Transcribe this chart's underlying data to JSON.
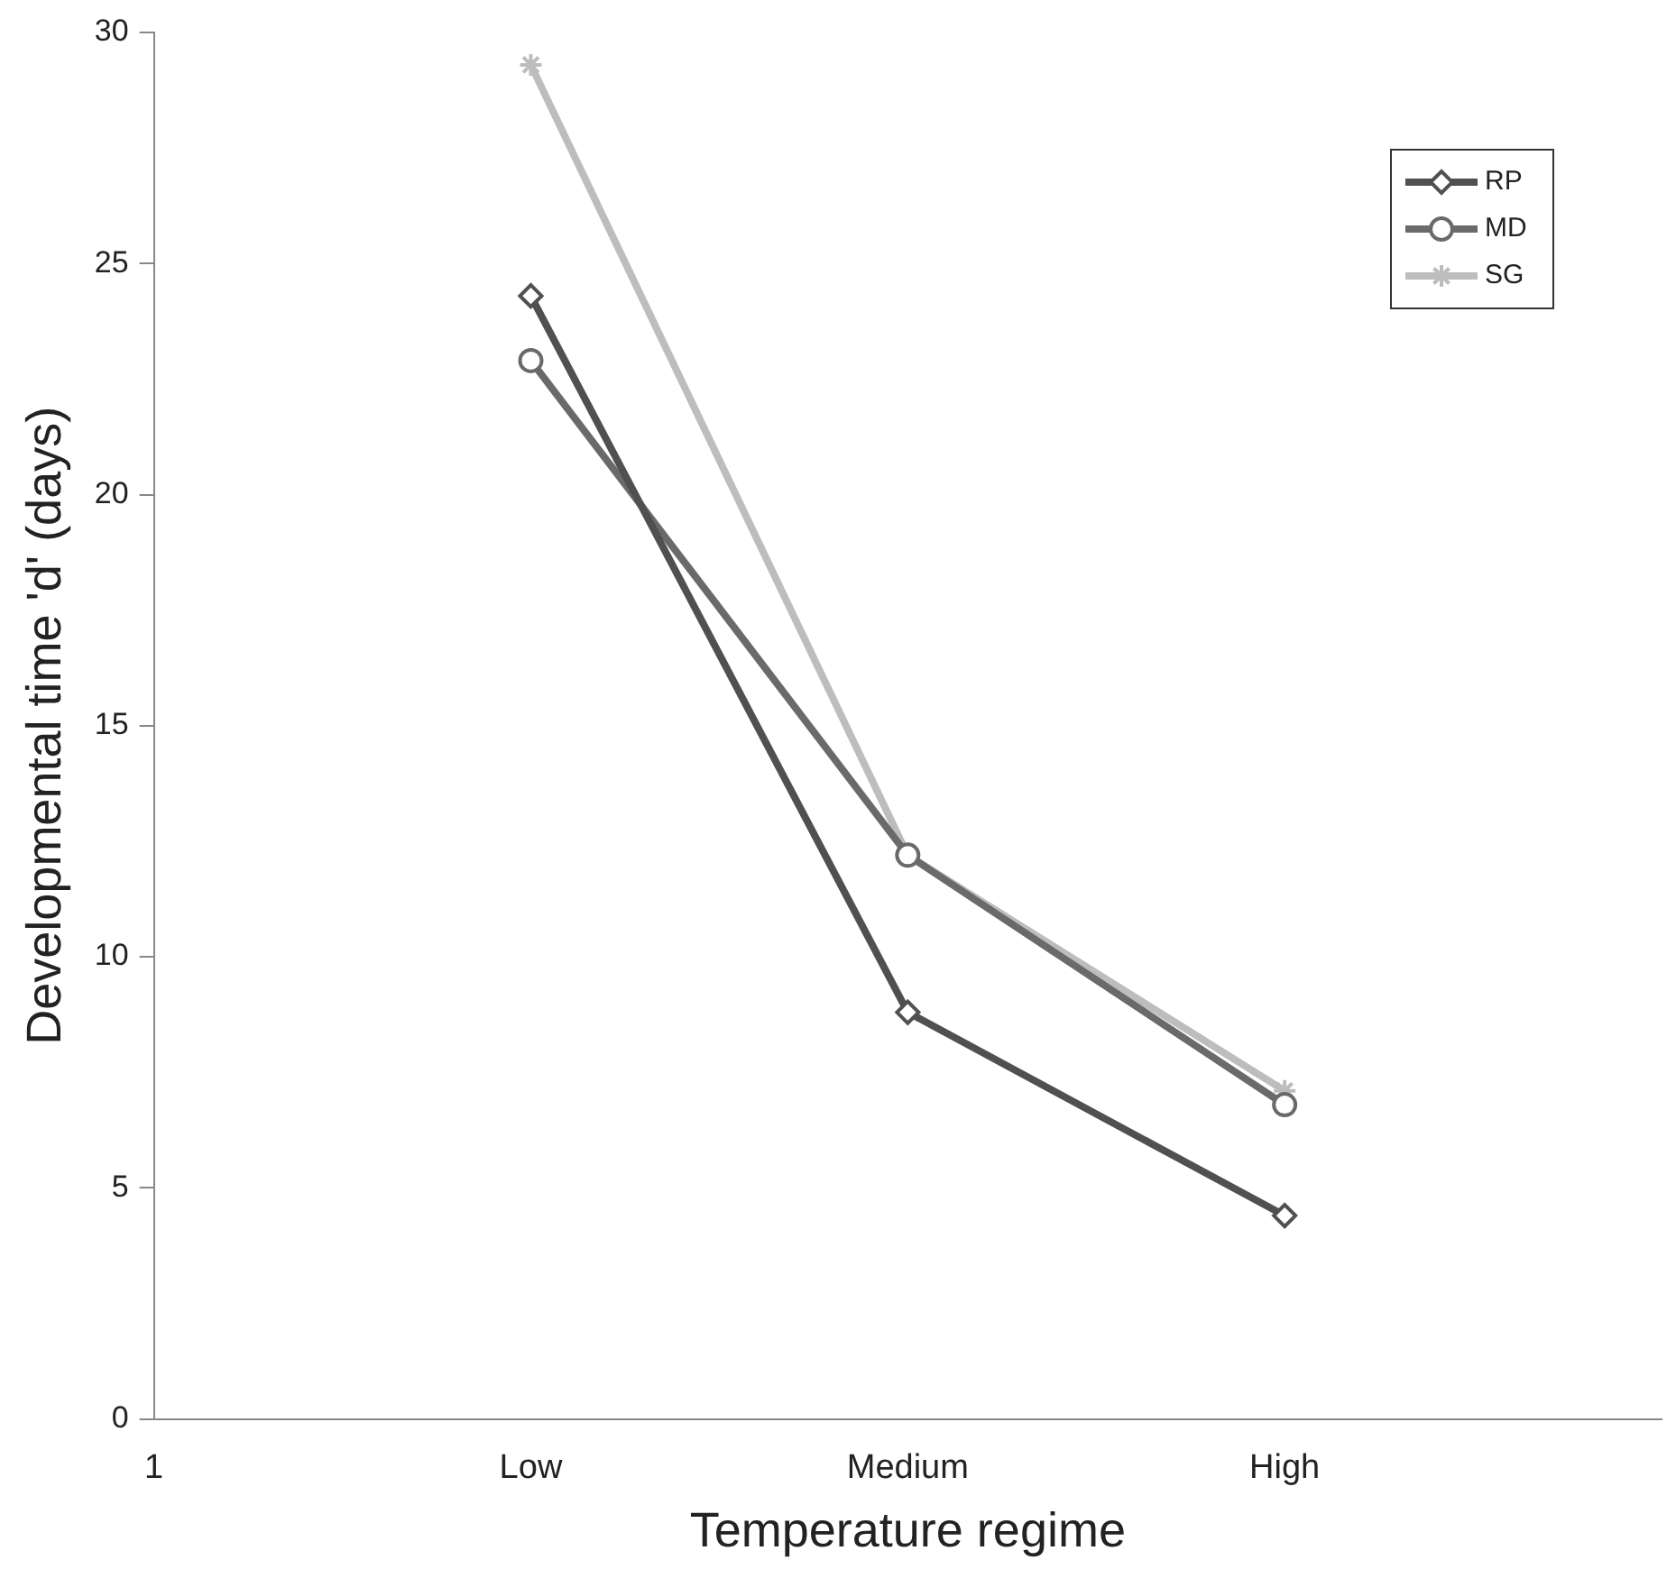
{
  "chart_data": {
    "type": "line",
    "xlabel": "Temperature regime",
    "ylabel": "Developmental time 'd' (days)",
    "categories": [
      "1",
      "Low",
      "Medium",
      "High",
      null
    ],
    "series": [
      {
        "name": "RP",
        "color": "#505050",
        "marker": "diamond",
        "values": [
          null,
          24.3,
          8.8,
          4.4,
          null
        ]
      },
      {
        "name": "MD",
        "color": "#6a6a6a",
        "marker": "circle",
        "values": [
          null,
          22.9,
          12.2,
          6.8,
          null
        ]
      },
      {
        "name": "SG",
        "color": "#bdbdbd",
        "marker": "cross",
        "values": [
          null,
          29.3,
          12.2,
          7.1,
          null
        ]
      }
    ],
    "ylim": [
      0,
      30
    ],
    "yticks": [
      0,
      5,
      10,
      15,
      20,
      25,
      30
    ],
    "grid": false,
    "legend": "top right"
  }
}
